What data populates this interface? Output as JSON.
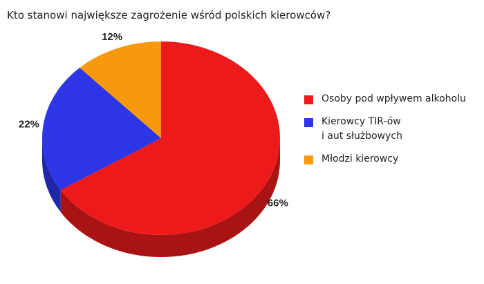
{
  "chart_data": {
    "type": "pie3d",
    "title": "Kto stanowi największe zagrożenie wśród polskich kierowców?",
    "categories": [
      "Osoby pod wpływem alkoholu",
      "Kierowcy TIR-ów\ni aut służbowych",
      "Młodzi kierowcy"
    ],
    "values": [
      66,
      22,
      12
    ],
    "value_labels": [
      "66%",
      "22%",
      "12%"
    ],
    "colors": [
      "#ec1a1a",
      "#2c36e6",
      "#f7990c"
    ],
    "legend": "right"
  }
}
